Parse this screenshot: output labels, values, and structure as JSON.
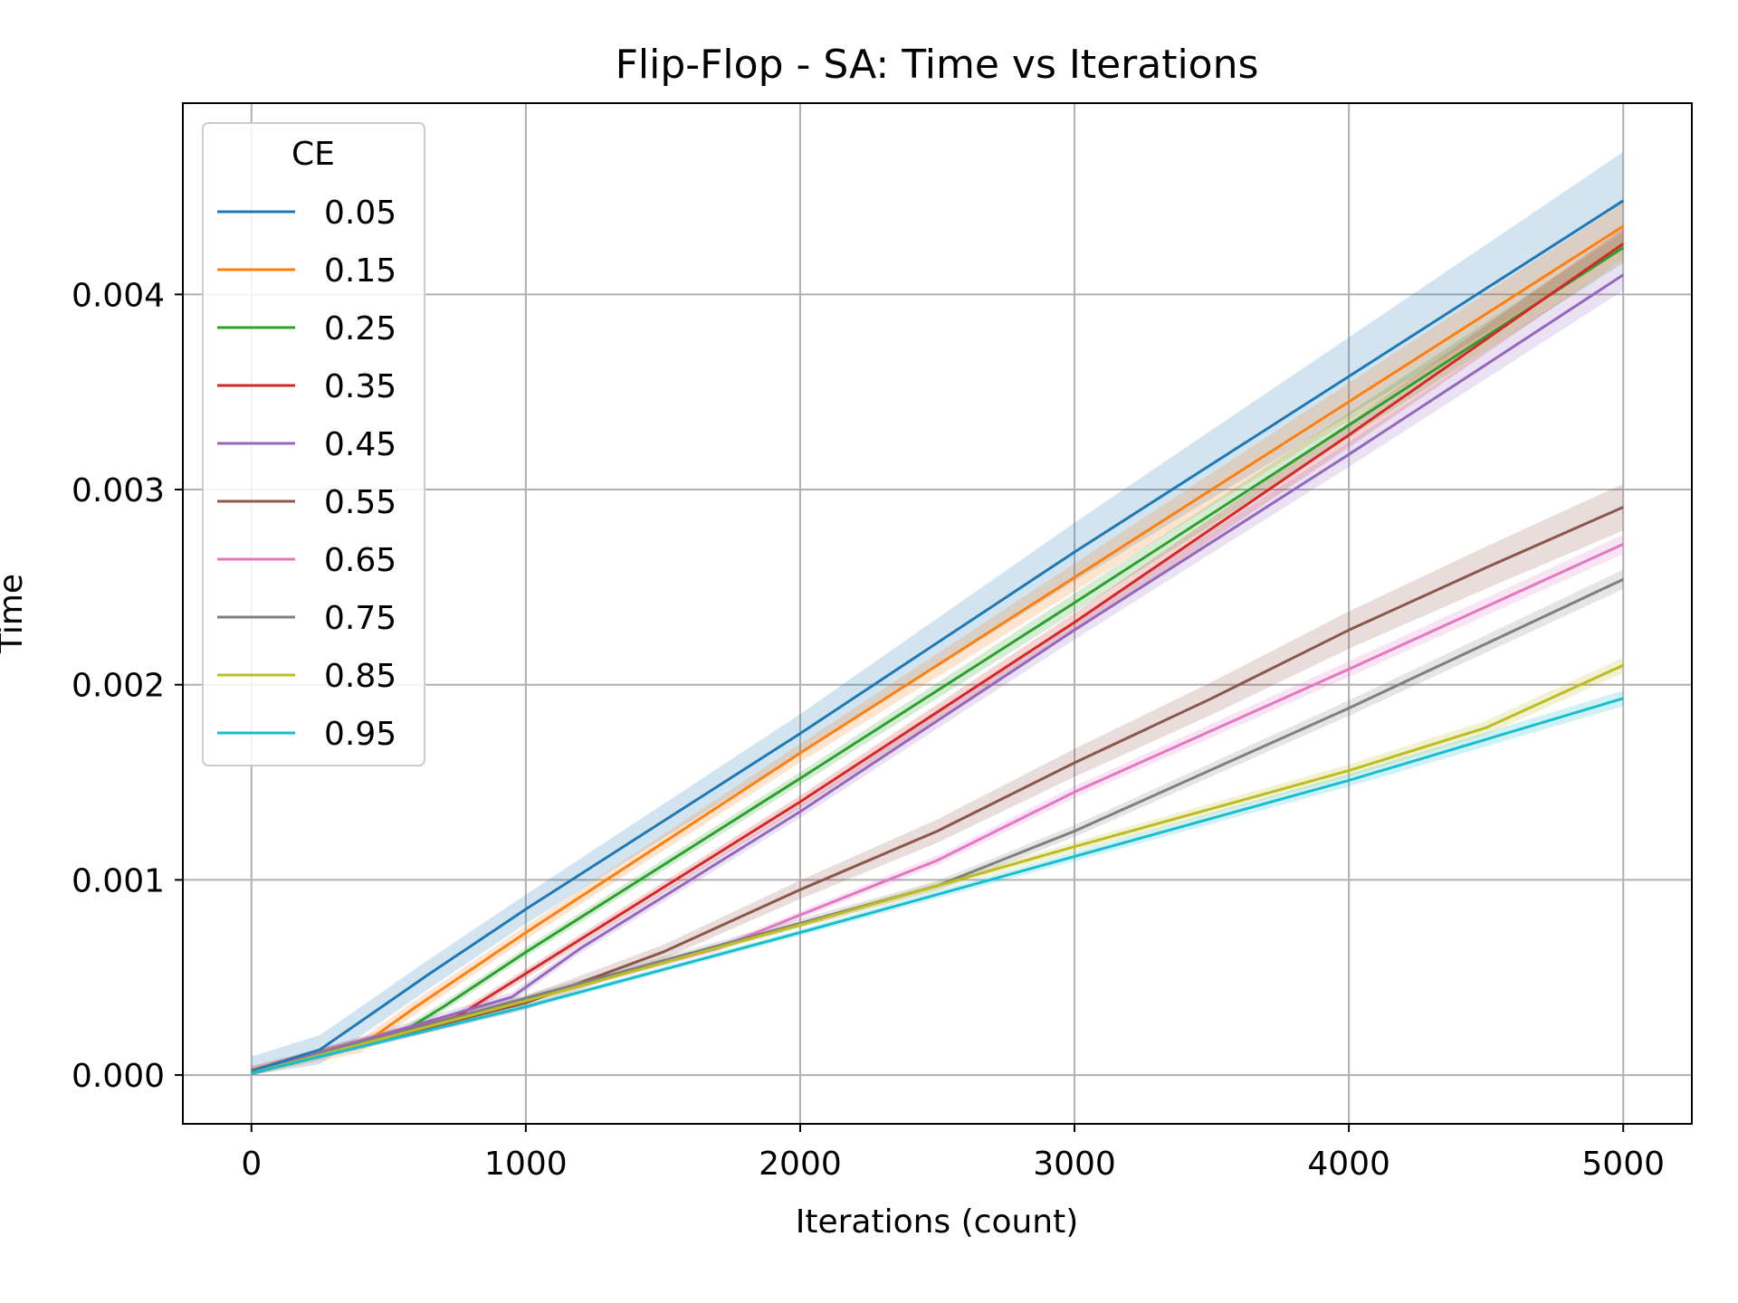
{
  "chart_data": {
    "type": "line",
    "title": "Flip-Flop - SA: Time vs Iterations",
    "xlabel": "Iterations (count)",
    "ylabel": "Time",
    "xlim": [
      -250,
      5250
    ],
    "ylim": [
      -0.00025,
      0.00498
    ],
    "xticks": [
      0,
      1000,
      2000,
      3000,
      4000,
      5000
    ],
    "xtick_labels": [
      "0",
      "1000",
      "2000",
      "3000",
      "4000",
      "5000"
    ],
    "yticks": [
      0,
      0.001,
      0.002,
      0.003,
      0.004
    ],
    "ytick_labels": [
      "0.000",
      "0.001",
      "0.002",
      "0.003",
      "0.004"
    ],
    "grid": true,
    "legend": {
      "title": "CE",
      "placement": "upper-left"
    },
    "series": [
      {
        "name": "0.05",
        "color": "#1f77b4",
        "band": 0.00025,
        "points": [
          [
            0,
            2e-05
          ],
          [
            250,
            0.00013
          ],
          [
            650,
            0.00052
          ],
          [
            1000,
            0.00085
          ],
          [
            2000,
            0.00175
          ],
          [
            3000,
            0.00268
          ],
          [
            4000,
            0.00358
          ],
          [
            5000,
            0.00448
          ]
        ]
      },
      {
        "name": "0.15",
        "color": "#ff7f0e",
        "band": 0.00012,
        "points": [
          [
            0,
            1e-05
          ],
          [
            400,
            0.00015
          ],
          [
            600,
            0.00035
          ],
          [
            1000,
            0.00073
          ],
          [
            2000,
            0.00165
          ],
          [
            3000,
            0.00255
          ],
          [
            4000,
            0.00345
          ],
          [
            5000,
            0.00435
          ]
        ]
      },
      {
        "name": "0.25",
        "color": "#2ca02c",
        "band": 8e-05,
        "points": [
          [
            0,
            1e-05
          ],
          [
            550,
            0.00022
          ],
          [
            700,
            0.00035
          ],
          [
            1000,
            0.00063
          ],
          [
            2000,
            0.00152
          ],
          [
            3000,
            0.00242
          ],
          [
            4000,
            0.00333
          ],
          [
            5000,
            0.00424
          ]
        ]
      },
      {
        "name": "0.35",
        "color": "#d62728",
        "band": 8e-05,
        "points": [
          [
            0,
            1e-05
          ],
          [
            750,
            0.0003
          ],
          [
            1000,
            0.00052
          ],
          [
            2000,
            0.0014
          ],
          [
            3000,
            0.00232
          ],
          [
            4000,
            0.00328
          ],
          [
            5000,
            0.00426
          ]
        ]
      },
      {
        "name": "0.45",
        "color": "#9467bd",
        "band": 8e-05,
        "points": [
          [
            0,
            1e-05
          ],
          [
            950,
            0.0004
          ],
          [
            1200,
            0.00065
          ],
          [
            2000,
            0.00135
          ],
          [
            3000,
            0.00228
          ],
          [
            4000,
            0.00318
          ],
          [
            5000,
            0.0041
          ]
        ]
      },
      {
        "name": "0.55",
        "color": "#8c564b",
        "band": 0.00012,
        "points": [
          [
            0,
            1e-05
          ],
          [
            1000,
            0.00037
          ],
          [
            1500,
            0.00063
          ],
          [
            2000,
            0.00095
          ],
          [
            2500,
            0.00125
          ],
          [
            3000,
            0.0016
          ],
          [
            3500,
            0.00193
          ],
          [
            4000,
            0.00228
          ],
          [
            4500,
            0.0026
          ],
          [
            5000,
            0.00291
          ]
        ]
      },
      {
        "name": "0.65",
        "color": "#e377c2",
        "band": 5e-05,
        "points": [
          [
            0,
            1e-05
          ],
          [
            1700,
            0.00065
          ],
          [
            2000,
            0.00082
          ],
          [
            2500,
            0.0011
          ],
          [
            3000,
            0.00145
          ],
          [
            4000,
            0.00208
          ],
          [
            5000,
            0.00272
          ]
        ]
      },
      {
        "name": "0.75",
        "color": "#7f7f7f",
        "band": 5e-05,
        "points": [
          [
            0,
            1e-05
          ],
          [
            2500,
            0.00097
          ],
          [
            3000,
            0.00125
          ],
          [
            4000,
            0.00188
          ],
          [
            5000,
            0.00254
          ]
        ]
      },
      {
        "name": "0.85",
        "color": "#bcbd22",
        "band": 4e-05,
        "points": [
          [
            0,
            1e-05
          ],
          [
            1000,
            0.00038
          ],
          [
            2000,
            0.00077
          ],
          [
            3000,
            0.00117
          ],
          [
            4000,
            0.00156
          ],
          [
            4500,
            0.00178
          ],
          [
            5000,
            0.0021
          ]
        ]
      },
      {
        "name": "0.95",
        "color": "#17becf",
        "band": 4e-05,
        "points": [
          [
            0,
            1e-05
          ],
          [
            1000,
            0.00035
          ],
          [
            2000,
            0.00073
          ],
          [
            3000,
            0.00112
          ],
          [
            4000,
            0.00151
          ],
          [
            5000,
            0.00193
          ]
        ]
      }
    ]
  }
}
